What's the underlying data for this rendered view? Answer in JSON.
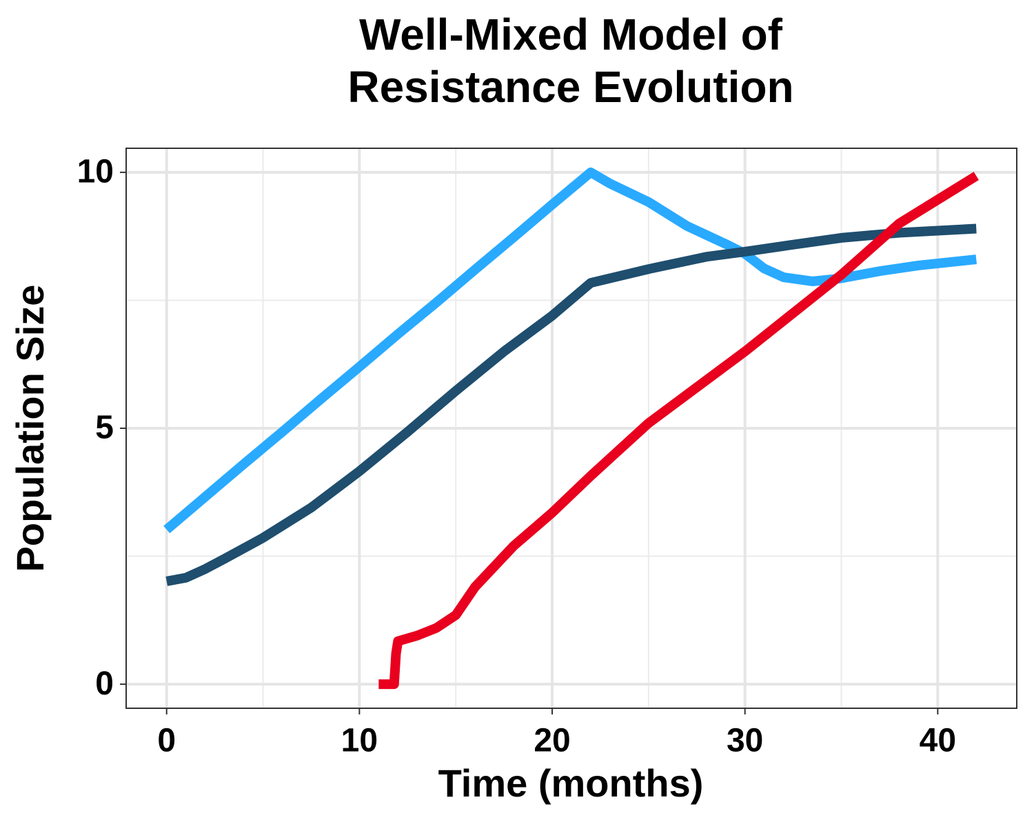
{
  "chart_data": {
    "type": "line",
    "title": "Well-Mixed Model of\nResistance Evolution",
    "x_label": "Time (months)",
    "y_label": "Population Size",
    "xlim": [
      -2.1,
      44.1
    ],
    "xticks": [
      0,
      10,
      20,
      30,
      40
    ],
    "x_minor_ticks": [
      5,
      15,
      25,
      35
    ],
    "ylim": [
      -0.47,
      10.47
    ],
    "yticks": [
      0,
      5,
      10
    ],
    "y_minor_ticks": [
      2.5,
      7.5
    ],
    "grid": true,
    "series": [
      {
        "color": "#29aaff",
        "x": [
          0,
          2,
          4,
          6,
          8,
          10,
          12,
          14,
          16,
          18,
          20,
          22,
          23,
          25,
          27,
          29,
          30,
          31,
          32,
          33.5,
          35,
          37,
          39,
          42
        ],
        "values": [
          3.02,
          3.66,
          4.3,
          4.93,
          5.57,
          6.2,
          6.84,
          7.46,
          8.1,
          8.73,
          9.37,
          10.0,
          9.78,
          9.42,
          8.95,
          8.6,
          8.41,
          8.12,
          7.95,
          7.87,
          7.93,
          8.07,
          8.18,
          8.3
        ]
      },
      {
        "color": "#1f4e6e",
        "x": [
          0,
          1,
          2,
          3,
          5,
          7.5,
          10,
          12.5,
          15,
          17.5,
          20,
          22,
          25,
          28,
          30,
          32,
          35,
          38,
          42
        ],
        "values": [
          2.01,
          2.08,
          2.25,
          2.45,
          2.86,
          3.45,
          4.16,
          4.93,
          5.73,
          6.5,
          7.2,
          7.84,
          8.11,
          8.35,
          8.45,
          8.56,
          8.72,
          8.82,
          8.9
        ]
      },
      {
        "color": "#e8001e",
        "x": [
          11,
          11.8,
          11.9,
          12,
          13,
          14,
          15,
          16,
          18,
          20,
          22,
          25,
          30,
          32,
          35,
          38,
          42
        ],
        "values": [
          0,
          0,
          0.6,
          0.84,
          0.95,
          1.1,
          1.35,
          1.9,
          2.7,
          3.35,
          4.07,
          5.1,
          6.5,
          7.1,
          8.0,
          9.0,
          9.93
        ]
      }
    ]
  }
}
